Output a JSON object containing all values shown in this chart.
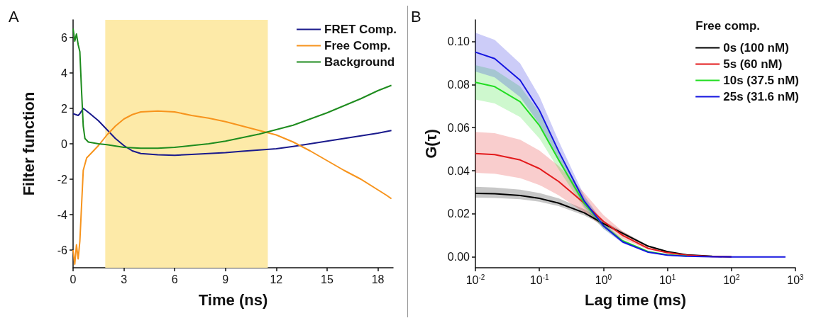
{
  "chart_data": [
    {
      "type": "line",
      "xlabel": "Time (ns)",
      "ylabel": "Filter function",
      "annotations": [
        "A"
      ],
      "xlim": [
        0,
        18.9
      ],
      "xticks": [
        0,
        3,
        6,
        9,
        12,
        15,
        18
      ],
      "ylim": [
        -7,
        7
      ],
      "yticks": [
        -6,
        -4,
        -2,
        0,
        2,
        4,
        6
      ],
      "grid": false,
      "legend": "top right",
      "marker": "none",
      "line_style": "solid",
      "bands": [
        {
          "axis": "x",
          "from": 1.9,
          "to": 11.5,
          "color": "#fdeaa8"
        }
      ],
      "series": [
        {
          "name": "FRET Comp.",
          "color": "#1a1a8c",
          "x": [
            0,
            0.3,
            0.4,
            0.6,
            1,
            1.5,
            2,
            2.5,
            3,
            3.5,
            4,
            5,
            6,
            7,
            8,
            9,
            10,
            11,
            12,
            13,
            14,
            15,
            16,
            17,
            18,
            18.8
          ],
          "values": [
            1.7,
            1.6,
            1.7,
            2.0,
            1.7,
            1.3,
            0.8,
            0.3,
            -0.1,
            -0.4,
            -0.55,
            -0.62,
            -0.65,
            -0.6,
            -0.55,
            -0.5,
            -0.42,
            -0.35,
            -0.28,
            -0.15,
            0,
            0.15,
            0.3,
            0.45,
            0.6,
            0.75
          ]
        },
        {
          "name": "Free Comp.",
          "color": "#f7941d",
          "x": [
            0,
            0.1,
            0.2,
            0.3,
            0.4,
            0.5,
            0.6,
            0.8,
            1,
            1.5,
            2,
            2.5,
            3,
            3.5,
            4,
            5,
            6,
            7,
            8,
            9,
            10,
            11,
            12,
            13,
            14,
            15,
            16,
            17,
            18,
            18.5,
            18.8
          ],
          "values": [
            -6,
            -6.8,
            -5.7,
            -6.5,
            -5.5,
            -3.5,
            -1.5,
            -0.8,
            -0.6,
            -0.1,
            0.5,
            1.0,
            1.4,
            1.65,
            1.8,
            1.85,
            1.8,
            1.6,
            1.45,
            1.25,
            1.0,
            0.75,
            0.5,
            0.1,
            -0.4,
            -0.95,
            -1.5,
            -2.0,
            -2.6,
            -2.9,
            -3.1
          ]
        },
        {
          "name": "Background",
          "color": "#1e8c1e",
          "x": [
            0,
            0.1,
            0.2,
            0.3,
            0.4,
            0.5,
            0.6,
            0.7,
            0.9,
            1.5,
            2,
            3,
            4,
            5,
            6,
            7,
            8,
            9,
            10,
            11,
            12,
            13,
            14,
            15,
            16,
            17,
            18,
            18.8
          ],
          "values": [
            6.5,
            5.8,
            6.2,
            5.6,
            5.2,
            3.0,
            1.0,
            0.3,
            0.1,
            0,
            -0.05,
            -0.2,
            -0.25,
            -0.25,
            -0.2,
            -0.1,
            0,
            0.15,
            0.35,
            0.55,
            0.8,
            1.05,
            1.4,
            1.75,
            2.15,
            2.55,
            3.0,
            3.3
          ]
        }
      ]
    },
    {
      "type": "line",
      "xlabel": "Lag time (ms)",
      "ylabel": "G(τ)",
      "annotations": [
        "B"
      ],
      "legend_title": "Free comp.",
      "log": "x",
      "xlim": [
        0.01,
        1000
      ],
      "xticks": [
        {
          "value": 0.01,
          "label": "10$^{-2}$"
        },
        {
          "value": 0.1,
          "label": "10$^{-1}$"
        },
        {
          "value": 1,
          "label": "10$^{0}$"
        },
        {
          "value": 10,
          "label": "10$^{1}$"
        },
        {
          "value": 100,
          "label": "10$^{2}$"
        },
        {
          "value": 1000,
          "label": "10$^{3}$"
        }
      ],
      "ylim": [
        -0.005,
        0.11
      ],
      "yticks": [
        {
          "value": 0,
          "label": "0.00"
        },
        {
          "value": 0.02,
          "label": "0.02"
        },
        {
          "value": 0.04,
          "label": "0.04"
        },
        {
          "value": 0.06,
          "label": "0.06"
        },
        {
          "value": 0.08,
          "label": "0.08"
        },
        {
          "value": 0.1,
          "label": "0.10"
        }
      ],
      "grid": false,
      "legend": "top right",
      "marker": "none",
      "line_style": "solid",
      "x": [
        0.01,
        0.02,
        0.05,
        0.1,
        0.2,
        0.5,
        1,
        2,
        5,
        10,
        20,
        50,
        100,
        200,
        700
      ],
      "series": [
        {
          "name": "0s (100 nM)",
          "color": "#000000",
          "values": [
            0.0295,
            0.0293,
            0.0285,
            0.0272,
            0.025,
            0.0205,
            0.0155,
            0.011,
            0.005,
            0.0025,
            0.001,
            0.0003,
            0.0001,
            null,
            null
          ],
          "lower": [
            0.0275,
            0.0274,
            0.0268,
            0.0256,
            0.0236,
            0.0193,
            0.0147,
            0.0104,
            0.0047,
            0.0023,
            0.0009,
            0.0003,
            0.0001,
            0,
            0
          ],
          "upper": [
            0.0325,
            0.0322,
            0.0312,
            0.0297,
            0.0272,
            0.0222,
            0.0167,
            0.0118,
            0.0054,
            0.0027,
            0.0011,
            0.0003,
            0.0001,
            0,
            0
          ]
        },
        {
          "name": "5s (60 nM)",
          "color": "#e31a1c",
          "values": [
            0.048,
            0.0475,
            0.045,
            0.041,
            0.035,
            0.025,
            0.0165,
            0.01,
            0.004,
            0.002,
            0.0008,
            0.0002,
            0.0001,
            null,
            null
          ],
          "lower": [
            0.039,
            0.0386,
            0.0366,
            0.0334,
            0.0286,
            0.0206,
            0.0137,
            0.0084,
            0.0034,
            0.0017,
            0.0007,
            0.0002,
            0.0001,
            0,
            0
          ],
          "upper": [
            0.058,
            0.0574,
            0.0544,
            0.0494,
            0.0422,
            0.0298,
            0.0195,
            0.0118,
            0.0047,
            0.0023,
            0.0009,
            0.0002,
            0.0001,
            0,
            0
          ]
        },
        {
          "name": "10s (37.5 nM)",
          "color": "#22dd22",
          "values": [
            0.081,
            0.079,
            0.072,
            0.061,
            0.045,
            0.025,
            0.0145,
            0.0075,
            0.0025,
            0.001,
            0.0004,
            null,
            null,
            null,
            null
          ],
          "lower": [
            0.073,
            0.0712,
            0.0649,
            0.055,
            0.0406,
            0.0226,
            0.0131,
            0.0068,
            0.0023,
            0.0009,
            0.0004,
            0.0001,
            0,
            0,
            0
          ],
          "upper": [
            0.089,
            0.0868,
            0.0791,
            0.067,
            0.0494,
            0.0274,
            0.0159,
            0.0082,
            0.0027,
            0.0011,
            0.0004,
            0.0001,
            0,
            0,
            0
          ]
        },
        {
          "name": "25s (31.6 nM)",
          "color": "#1515e0",
          "values": [
            0.095,
            0.092,
            0.082,
            0.068,
            0.049,
            0.026,
            0.0145,
            0.007,
            0.0022,
            0.0008,
            0.0003,
            0.0001,
            0,
            0,
            0
          ],
          "lower": [
            0.086,
            0.0833,
            0.0742,
            0.0615,
            0.0443,
            0.0235,
            0.0131,
            0.0063,
            0.002,
            0.0007,
            0.0003,
            0.0001,
            0,
            0,
            0
          ],
          "upper": [
            0.104,
            0.1007,
            0.0898,
            0.0745,
            0.0537,
            0.0285,
            0.0159,
            0.0077,
            0.0024,
            0.0009,
            0.0003,
            0.0001,
            0,
            0,
            0
          ]
        }
      ]
    }
  ]
}
